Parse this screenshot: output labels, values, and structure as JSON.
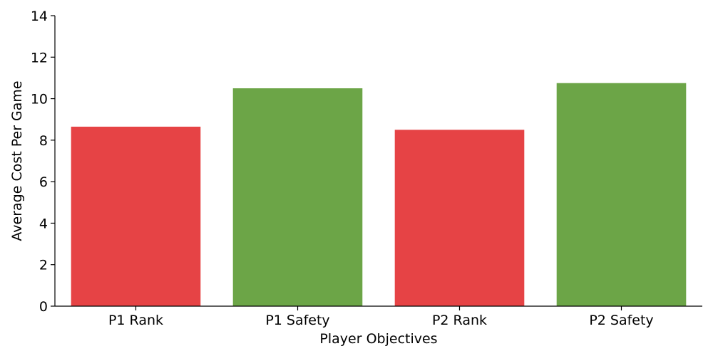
{
  "chart_data": {
    "type": "bar",
    "categories": [
      "P1 Rank",
      "P1 Safety",
      "P2 Rank",
      "P2 Safety"
    ],
    "values": [
      8.65,
      10.5,
      8.5,
      10.75
    ],
    "colors": [
      "#e64345",
      "#6ca547",
      "#e64345",
      "#6ca547"
    ],
    "xlabel": "Player Objectives",
    "ylabel": "Average Cost Per Game",
    "ylim": [
      0,
      14
    ],
    "yticks": [
      0,
      2,
      4,
      6,
      8,
      10,
      12,
      14
    ],
    "grid": false,
    "legend": "none"
  }
}
